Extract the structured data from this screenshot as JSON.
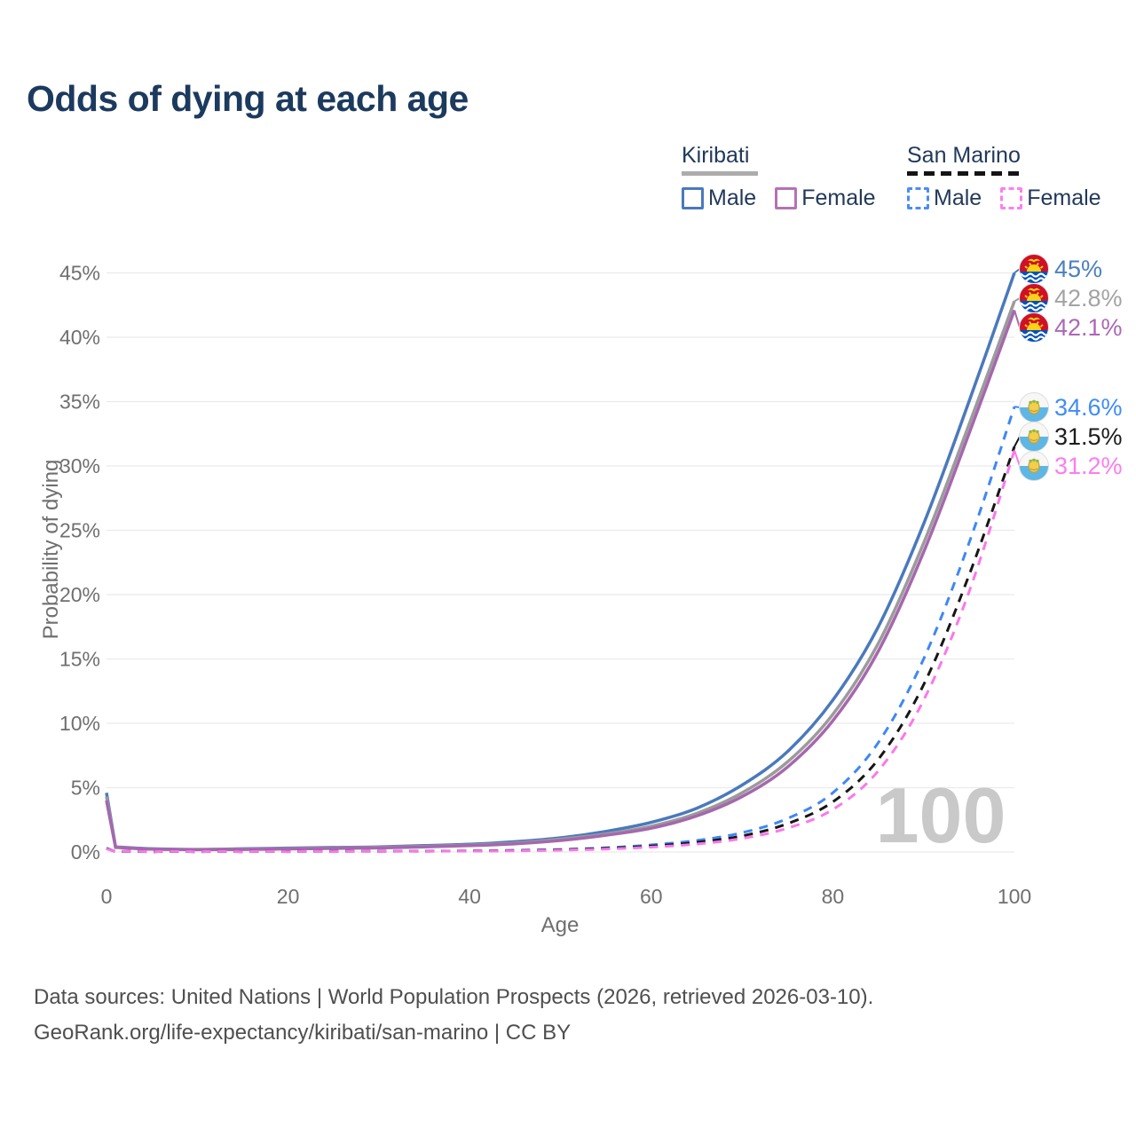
{
  "title": "Odds of dying at each age",
  "legend": {
    "groups": [
      {
        "label": "Kiribati",
        "line_style": "solid",
        "items": [
          {
            "label": "Male",
            "color": "#4a79bc"
          },
          {
            "label": "Female",
            "color": "#b472b6"
          }
        ]
      },
      {
        "label": "San Marino",
        "line_style": "dashed",
        "items": [
          {
            "label": "Male",
            "color": "#4a8cf7"
          },
          {
            "label": "Female",
            "color": "#fb80ef"
          }
        ]
      }
    ]
  },
  "chart_data": {
    "type": "line",
    "title": "Odds of dying at each age",
    "xlabel": "Age",
    "ylabel": "Probability of dying",
    "xlim": [
      0,
      100
    ],
    "ylim_percent": [
      0,
      47
    ],
    "grid": true,
    "watermark": "100",
    "x_tick_values": [
      0,
      20,
      40,
      60,
      80,
      100
    ],
    "y_tick_values": [
      0,
      5,
      10,
      15,
      20,
      25,
      30,
      35,
      40,
      45
    ],
    "y_tick_labels": [
      "0%",
      "5%",
      "10%",
      "15%",
      "20%",
      "25%",
      "30%",
      "35%",
      "40%",
      "45%"
    ],
    "x": [
      0,
      1,
      5,
      10,
      15,
      20,
      25,
      30,
      35,
      40,
      45,
      50,
      55,
      60,
      65,
      70,
      75,
      80,
      85,
      90,
      95,
      100
    ],
    "series": [
      {
        "name": "Kiribati Male",
        "color": "#4a79bc",
        "dash": false,
        "end_label": "45%",
        "label_color": "#4a7fc1",
        "flag": "kiribati-flag-icon",
        "values": [
          4.6,
          0.4,
          0.25,
          0.2,
          0.25,
          0.3,
          0.35,
          0.4,
          0.5,
          0.6,
          0.8,
          1.1,
          1.6,
          2.3,
          3.4,
          5.2,
          7.8,
          11.8,
          17.5,
          25.5,
          35.0,
          45.0
        ]
      },
      {
        "name": "Kiribati Both sexes",
        "color": "#9b9b9b",
        "dash": false,
        "end_label": "42.8%",
        "label_color": "#a3a3a3",
        "flag": "kiribati-flag-icon",
        "values": [
          4.3,
          0.38,
          0.23,
          0.19,
          0.23,
          0.27,
          0.31,
          0.36,
          0.44,
          0.54,
          0.7,
          1.0,
          1.4,
          2.0,
          3.0,
          4.6,
          7.0,
          10.7,
          16.2,
          24.0,
          33.2,
          42.8
        ]
      },
      {
        "name": "Kiribati Female",
        "color": "#a667ae",
        "dash": false,
        "end_label": "42.1%",
        "label_color": "#ab68b5",
        "flag": "kiribati-flag-icon",
        "values": [
          4.0,
          0.35,
          0.22,
          0.18,
          0.2,
          0.24,
          0.28,
          0.32,
          0.4,
          0.5,
          0.64,
          0.9,
          1.3,
          1.85,
          2.8,
          4.3,
          6.6,
          10.2,
          15.6,
          23.3,
          32.5,
          42.1
        ]
      },
      {
        "name": "San Marino Male",
        "color": "#3f87f5",
        "dash": true,
        "end_label": "34.6%",
        "label_color": "#3f8cf6",
        "flag": "san-marino-flag-icon",
        "values": [
          0.3,
          0.02,
          0.01,
          0.01,
          0.02,
          0.04,
          0.05,
          0.06,
          0.07,
          0.09,
          0.13,
          0.2,
          0.33,
          0.55,
          0.9,
          1.5,
          2.6,
          4.6,
          8.5,
          15.0,
          24.0,
          34.6
        ]
      },
      {
        "name": "San Marino Both sexes",
        "color": "#161616",
        "dash": true,
        "end_label": "31.5%",
        "label_color": "#1c1c1c",
        "flag": "san-marino-flag-icon",
        "values": [
          0.27,
          0.02,
          0.01,
          0.01,
          0.02,
          0.03,
          0.04,
          0.05,
          0.06,
          0.08,
          0.11,
          0.17,
          0.28,
          0.46,
          0.75,
          1.25,
          2.2,
          3.9,
          7.2,
          13.0,
          21.5,
          31.5
        ]
      },
      {
        "name": "San Marino Female",
        "color": "#fa78e8",
        "dash": true,
        "end_label": "31.2%",
        "label_color": "#fc7cf0",
        "flag": "san-marino-flag-icon",
        "values": [
          0.25,
          0.02,
          0.01,
          0.01,
          0.01,
          0.02,
          0.03,
          0.04,
          0.05,
          0.07,
          0.09,
          0.14,
          0.23,
          0.38,
          0.62,
          1.05,
          1.85,
          3.3,
          6.3,
          11.8,
          20.2,
          31.2
        ]
      }
    ]
  },
  "footer": {
    "line1": "Data sources: United Nations | World Population Prospects (2026, retrieved 2026-03-10).",
    "line2": "GeoRank.org/life-expectancy/kiribati/san-marino | CC BY"
  }
}
